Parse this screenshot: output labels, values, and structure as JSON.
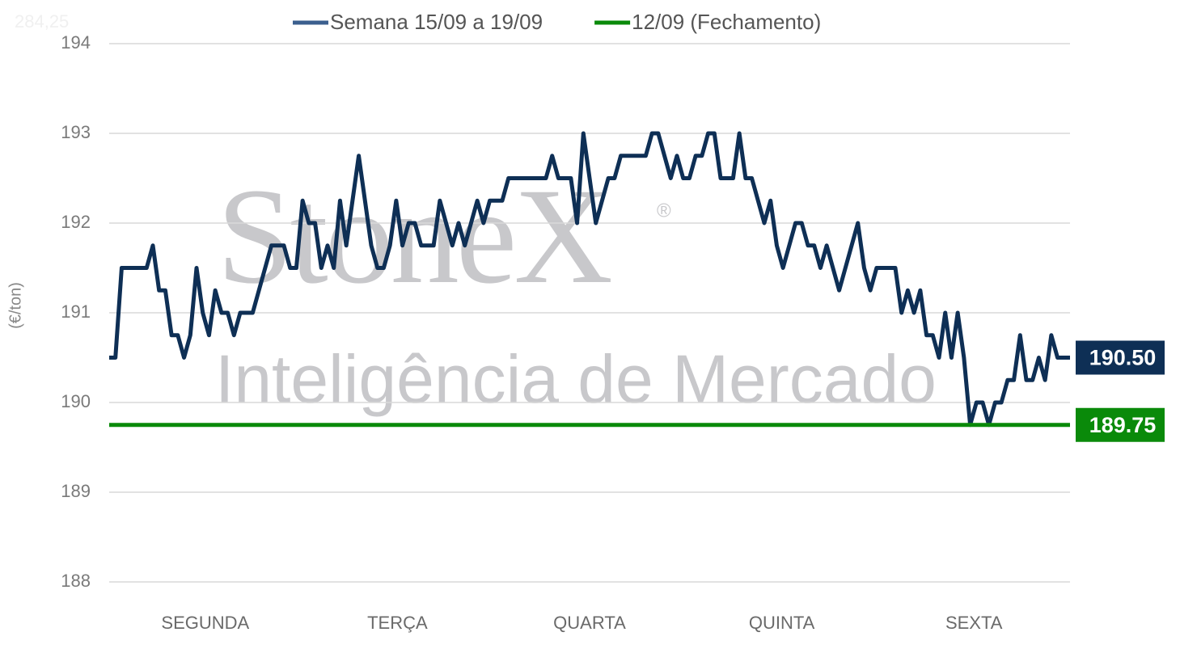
{
  "chart_data": {
    "type": "line",
    "corner_text": "284,25",
    "watermark": {
      "brand": "StoneX",
      "mark": "®",
      "tagline": "Inteligência de Mercado"
    },
    "ylabel": "(€/ton)",
    "x_labels": [
      "SEGUNDA",
      "TERÇA",
      "QUARTA",
      "QUINTA",
      "SEXTA"
    ],
    "ylim": [
      188,
      194
    ],
    "yticks": [
      188,
      189,
      190,
      191,
      192,
      193,
      194
    ],
    "grid": true,
    "series": [
      {
        "name": "Semana 15/09 a 19/09",
        "color": "#0e2f55",
        "legend_color": "#3b5f8e",
        "last_value_label": "190.50",
        "values": [
          190.5,
          190.5,
          191.5,
          191.5,
          191.5,
          191.5,
          191.5,
          191.75,
          191.25,
          191.25,
          190.75,
          190.75,
          190.5,
          190.75,
          191.5,
          191,
          190.75,
          191.25,
          191,
          191,
          190.75,
          191,
          191,
          191,
          191.25,
          191.5,
          191.75,
          191.75,
          191.75,
          191.5,
          191.5,
          192.25,
          192,
          192,
          191.5,
          191.75,
          191.5,
          192.25,
          191.75,
          192.25,
          192.75,
          192.25,
          191.75,
          191.5,
          191.5,
          191.75,
          192.25,
          191.75,
          192,
          192,
          191.75,
          191.75,
          191.75,
          192.25,
          192,
          191.75,
          192,
          191.75,
          192,
          192.25,
          192,
          192.25,
          192.25,
          192.25,
          192.5,
          192.5,
          192.5,
          192.5,
          192.5,
          192.5,
          192.5,
          192.75,
          192.5,
          192.5,
          192.5,
          192,
          193,
          192.5,
          192,
          192.25,
          192.5,
          192.5,
          192.75,
          192.75,
          192.75,
          192.75,
          192.75,
          193,
          193,
          192.75,
          192.5,
          192.75,
          192.5,
          192.5,
          192.75,
          192.75,
          193,
          193,
          192.5,
          192.5,
          192.5,
          193,
          192.5,
          192.5,
          192.25,
          192,
          192.25,
          191.75,
          191.5,
          191.75,
          192,
          192,
          191.75,
          191.75,
          191.5,
          191.75,
          191.5,
          191.25,
          191.5,
          191.75,
          192,
          191.5,
          191.25,
          191.5,
          191.5,
          191.5,
          191.5,
          191,
          191.25,
          191,
          191.25,
          190.75,
          190.75,
          190.5,
          191,
          190.5,
          191,
          190.5,
          189.75,
          190,
          190,
          189.75,
          190,
          190,
          190.25,
          190.25,
          190.75,
          190.25,
          190.25,
          190.5,
          190.25,
          190.75,
          190.5,
          190.5,
          190.5
        ]
      },
      {
        "name": "12/09 (Fechamento)",
        "color": "#0a8a0a",
        "legend_color": "#0a8a0a",
        "value": 189.75,
        "last_value_label": "189.75"
      }
    ]
  }
}
